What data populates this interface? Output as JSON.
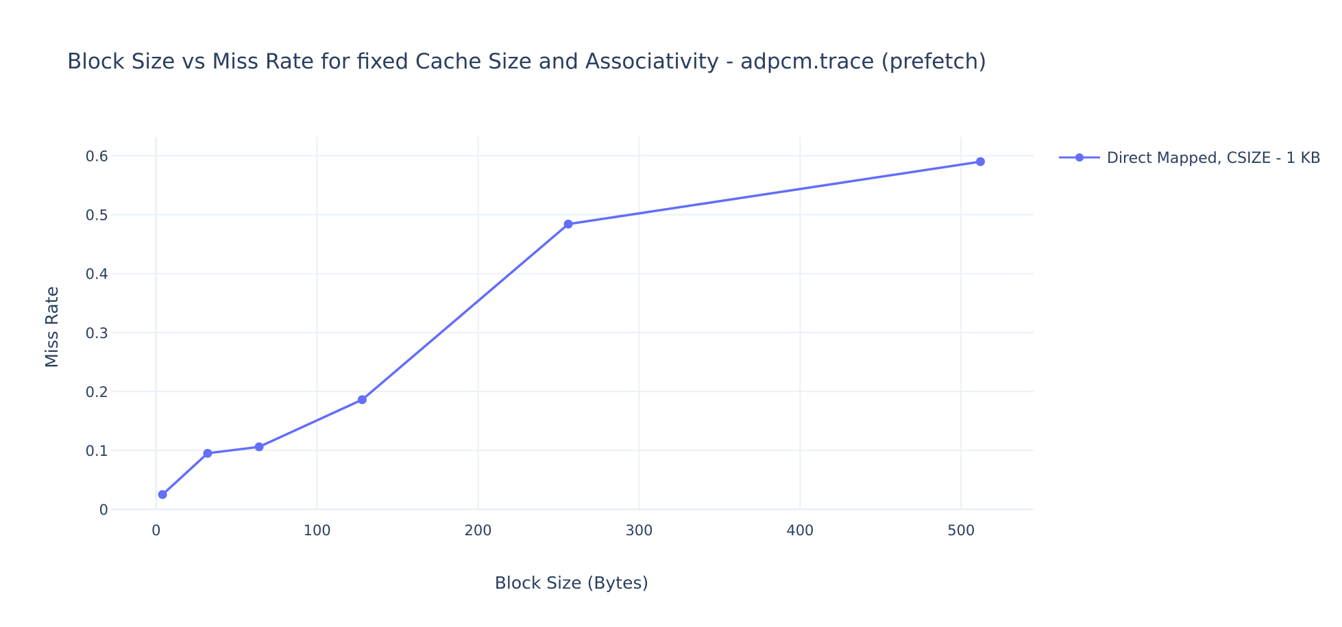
{
  "chart_data": {
    "type": "line",
    "title": "Block Size vs Miss Rate for fixed Cache Size and Associativity - adpcm.trace (prefetch)",
    "xlabel": "Block Size (Bytes)",
    "ylabel": "Miss Rate",
    "xlim": [
      -28,
      545
    ],
    "ylim": [
      0,
      0.632
    ],
    "x_ticks": [
      0,
      100,
      200,
      300,
      400,
      500
    ],
    "y_ticks": [
      0,
      0.1,
      0.2,
      0.3,
      0.4,
      0.5,
      0.6
    ],
    "grid": true,
    "legend_position": "top-right",
    "series": [
      {
        "name": "Direct Mapped, CSIZE - 1 KB",
        "color": "#636efa",
        "mode": "lines+markers",
        "x": [
          4,
          32,
          64,
          128,
          256,
          512
        ],
        "y": [
          0.025,
          0.095,
          0.106,
          0.186,
          0.484,
          0.59
        ]
      }
    ]
  }
}
